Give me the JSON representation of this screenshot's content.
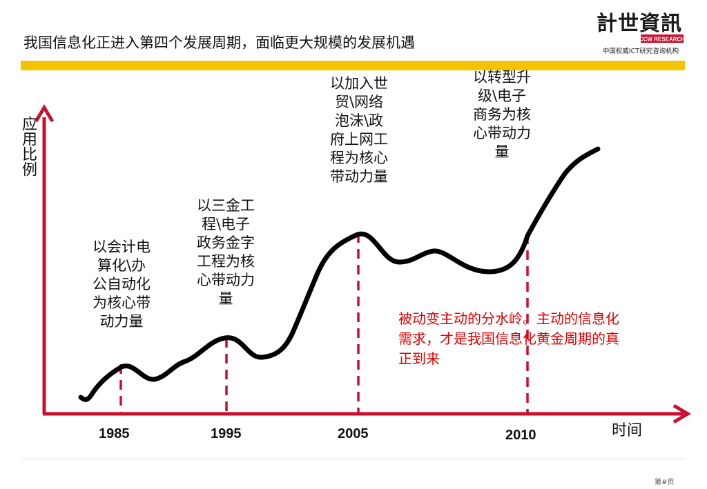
{
  "slide": {
    "title": "我国信息化正进入第四个发展周期，面临更大规模的发展机遇",
    "page_number": "第#页"
  },
  "logo": {
    "chinese": "計世資訊",
    "english": "CCW RESEARCH",
    "subtitle": "中国权威ICT研究咨询机构",
    "accent_color": "#c8102e"
  },
  "diagram": {
    "axis_color": "#c8102e",
    "curve_color": "#000000",
    "y_axis_label": "应用比例",
    "x_axis_label": "时间",
    "years": [
      "1985",
      "1995",
      "2005",
      "2010"
    ],
    "stages": [
      "以会计电算化\\办公自动化为核心带动力量",
      "以三金工程\\电子政务金字工程为核心带动力量",
      "以加入世贸\\网络泡沫\\政府上网工程为核心带动力量",
      "以转型升级\\电子商务为核心带动力量"
    ],
    "callout": "被动变主动的分水岭。主动的信息化需求，才是我国信息化黄金周期的真正到来",
    "callout_color": "#e10000"
  }
}
